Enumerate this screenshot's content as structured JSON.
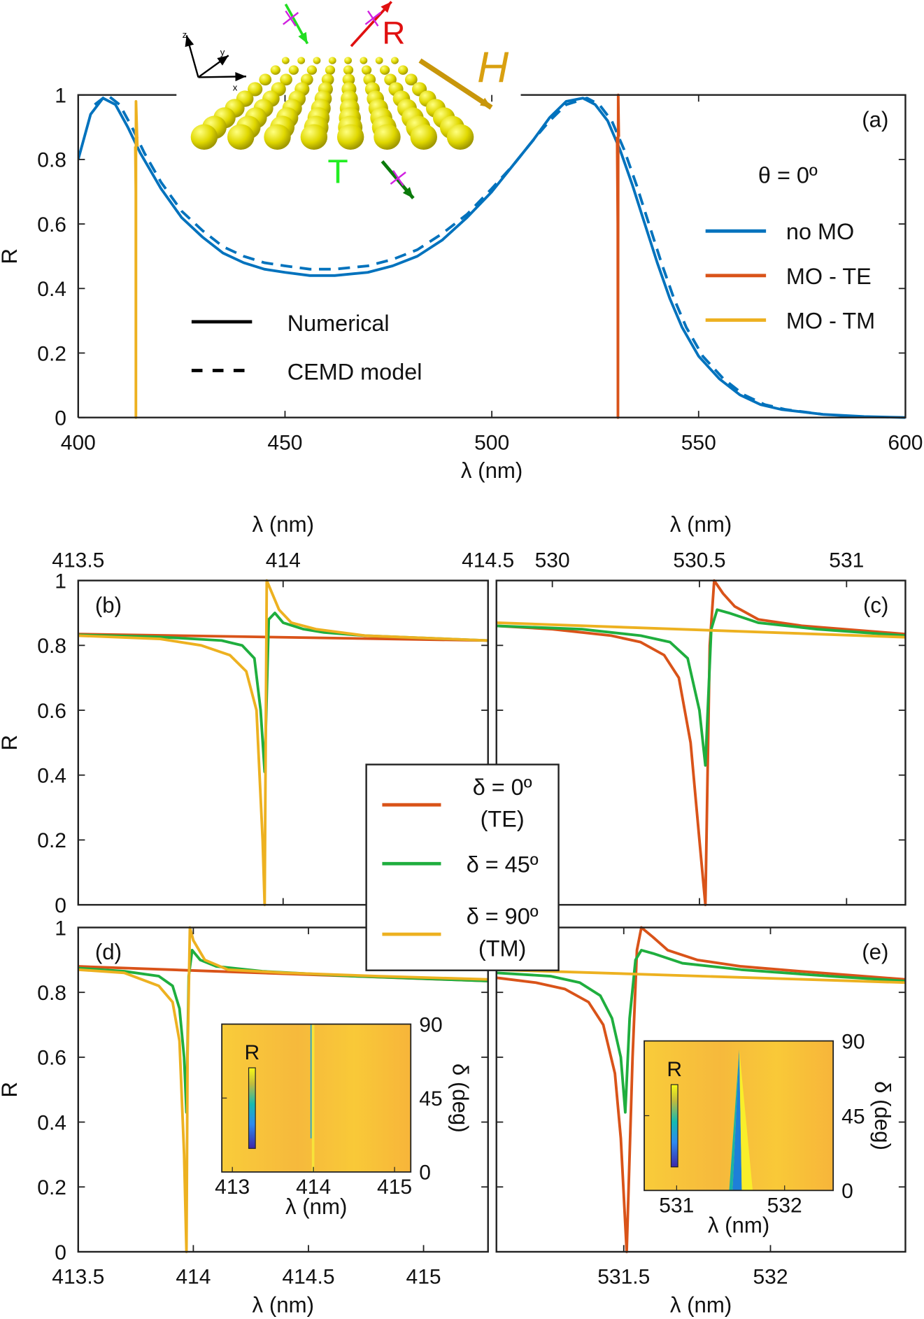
{
  "colors": {
    "no_mo": "#0072BD",
    "te": "#D95319",
    "tm": "#EDB120",
    "d45": "#1FAE3E"
  },
  "schematic": {
    "label_R": "R",
    "label_H": "H",
    "label_T": "T",
    "axis_x": "x",
    "axis_y": "y",
    "axis_z": "z"
  },
  "chart_data": [
    {
      "id": "a",
      "type": "line",
      "panel_label": "(a)",
      "xlabel": "λ (nm)",
      "ylabel": "R",
      "xlim": [
        400,
        600
      ],
      "ylim": [
        0,
        1
      ],
      "xticks": [
        400,
        450,
        500,
        550,
        600
      ],
      "yticks": [
        0,
        0.2,
        0.4,
        0.6,
        0.8,
        1
      ],
      "ytick_labels": [
        "0",
        "0.2",
        "0.4",
        "0.6",
        "0.8",
        "1"
      ],
      "annotation": "θ = 0º",
      "legend": {
        "placement": "right",
        "entries": [
          "no MO",
          "MO - TE",
          "MO - TM"
        ]
      },
      "style_legend": {
        "placement": "bottom-left",
        "entries": [
          "Numerical",
          "CEMD model"
        ]
      },
      "series": [
        {
          "name": "no MO",
          "style": "solid",
          "color": "no_mo",
          "x": [
            400,
            403,
            406,
            409,
            412,
            415,
            420,
            425,
            430,
            435,
            440,
            445,
            450,
            456,
            462,
            470,
            476,
            482,
            488,
            494,
            500,
            505,
            510,
            514,
            518,
            522,
            525,
            528,
            531,
            534,
            537,
            540,
            543,
            546,
            550,
            555,
            560,
            565,
            570,
            580,
            590,
            600
          ],
          "y": [
            0.8,
            0.94,
            0.99,
            0.97,
            0.9,
            0.82,
            0.71,
            0.62,
            0.56,
            0.51,
            0.48,
            0.46,
            0.45,
            0.44,
            0.44,
            0.45,
            0.47,
            0.5,
            0.55,
            0.62,
            0.7,
            0.78,
            0.86,
            0.93,
            0.98,
            0.99,
            0.97,
            0.92,
            0.83,
            0.72,
            0.6,
            0.48,
            0.37,
            0.28,
            0.19,
            0.12,
            0.07,
            0.04,
            0.025,
            0.01,
            0.003,
            0
          ]
        },
        {
          "name": "no MO",
          "style": "dashed",
          "color": "no_mo",
          "x": [
            404,
            407,
            410,
            413,
            416,
            420,
            425,
            430,
            435,
            440,
            445,
            450,
            456,
            462,
            470,
            476,
            482,
            488,
            494,
            500,
            505,
            510,
            514,
            518,
            523,
            526,
            529,
            532,
            535,
            538,
            541,
            544,
            547,
            551,
            556,
            561,
            566,
            571,
            580
          ],
          "y": [
            0.97,
            1.0,
            0.97,
            0.9,
            0.82,
            0.73,
            0.64,
            0.58,
            0.53,
            0.5,
            0.48,
            0.47,
            0.46,
            0.46,
            0.47,
            0.49,
            0.52,
            0.57,
            0.63,
            0.71,
            0.78,
            0.86,
            0.92,
            0.97,
            0.99,
            0.97,
            0.92,
            0.83,
            0.72,
            0.6,
            0.48,
            0.37,
            0.28,
            0.19,
            0.12,
            0.07,
            0.04,
            0.025,
            0.01
          ]
        },
        {
          "name": "MO - TE",
          "style": "solid",
          "color": "te",
          "x": [
            530.3,
            530.45,
            530.5,
            530.55,
            530.7
          ],
          "y": [
            0.87,
            0.6,
            0,
            1,
            0.87
          ]
        },
        {
          "name": "MO - TM",
          "style": "solid",
          "color": "tm",
          "x": [
            413.8,
            413.93,
            413.95,
            413.97,
            414.3
          ],
          "y": [
            0.84,
            0.7,
            0,
            0.98,
            0.84
          ]
        }
      ]
    },
    {
      "id": "b",
      "type": "line",
      "panel_label": "(b)",
      "xlabel": "λ (nm)",
      "ylabel": "R",
      "xlim": [
        413.5,
        414.5
      ],
      "ylim": [
        0,
        1
      ],
      "xaxis": "top",
      "xticks": [
        413.5,
        414,
        414.5
      ],
      "xtick_labels": [
        "413.5",
        "414",
        "414.5"
      ],
      "yticks": [
        0,
        0.2,
        0.4,
        0.6,
        0.8,
        1
      ],
      "ytick_labels": [
        "0",
        "0.2",
        "0.4",
        "0.6",
        "0.8",
        "1"
      ],
      "series": [
        {
          "name": "δ = 0º (TE)",
          "color": "te",
          "x": [
            413.5,
            414.5
          ],
          "y": [
            0.835,
            0.815
          ]
        },
        {
          "name": "δ = 45º",
          "color": "d45",
          "x": [
            413.5,
            413.7,
            413.85,
            413.9,
            413.93,
            413.945,
            413.955,
            413.965,
            413.98,
            414,
            414.05,
            414.1,
            414.2,
            414.5
          ],
          "y": [
            0.832,
            0.826,
            0.815,
            0.8,
            0.76,
            0.6,
            0.41,
            0.88,
            0.9,
            0.87,
            0.85,
            0.84,
            0.83,
            0.815
          ]
        },
        {
          "name": "δ = 90º (TM)",
          "color": "tm",
          "x": [
            413.5,
            413.7,
            413.8,
            413.87,
            413.91,
            413.935,
            413.95,
            413.955,
            413.96,
            413.97,
            413.99,
            414.02,
            414.08,
            414.2,
            414.5
          ],
          "y": [
            0.83,
            0.82,
            0.8,
            0.77,
            0.72,
            0.6,
            0.2,
            0,
            1,
            0.97,
            0.91,
            0.87,
            0.85,
            0.83,
            0.815
          ]
        }
      ]
    },
    {
      "id": "c",
      "type": "line",
      "panel_label": "(c)",
      "xlabel": "λ (nm)",
      "xlim": [
        529.81,
        531.2
      ],
      "ylim": [
        0,
        1
      ],
      "xaxis": "top",
      "xticks": [
        530,
        530.5,
        531
      ],
      "xtick_labels": [
        "530",
        "530.5",
        "531"
      ],
      "series": [
        {
          "name": "δ = 0º (TE)",
          "color": "te",
          "x": [
            529.81,
            530.0,
            530.2,
            530.3,
            530.38,
            530.43,
            530.47,
            530.5,
            530.52,
            530.535,
            530.55,
            530.58,
            530.62,
            530.7,
            530.85,
            531.2
          ],
          "y": [
            0.86,
            0.85,
            0.83,
            0.81,
            0.77,
            0.7,
            0.5,
            0.2,
            0,
            0.8,
            1,
            0.96,
            0.92,
            0.88,
            0.86,
            0.835
          ]
        },
        {
          "name": "δ = 45º",
          "color": "d45",
          "x": [
            529.81,
            530.1,
            530.3,
            530.4,
            530.46,
            530.5,
            530.52,
            530.54,
            530.56,
            530.6,
            530.7,
            530.9,
            531.2
          ],
          "y": [
            0.86,
            0.85,
            0.83,
            0.81,
            0.76,
            0.6,
            0.43,
            0.85,
            0.91,
            0.9,
            0.87,
            0.85,
            0.83
          ]
        },
        {
          "name": "δ = 90º (TM)",
          "color": "tm",
          "x": [
            529.81,
            531.2
          ],
          "y": [
            0.87,
            0.825
          ]
        }
      ]
    },
    {
      "id": "d",
      "type": "line",
      "panel_label": "(d)",
      "xlabel": "λ (nm)",
      "ylabel": "R",
      "xlim": [
        413.5,
        415.28
      ],
      "ylim": [
        0,
        1
      ],
      "xticks": [
        413.5,
        414,
        414.5,
        415
      ],
      "xtick_labels": [
        "413.5",
        "414",
        "414.5",
        "415"
      ],
      "yticks": [
        0,
        0.2,
        0.4,
        0.6,
        0.8,
        1
      ],
      "ytick_labels": [
        "0",
        "0.2",
        "0.4",
        "0.6",
        "0.8",
        "1"
      ],
      "series": [
        {
          "name": "δ = 0º (TE)",
          "color": "te",
          "x": [
            413.5,
            415.28
          ],
          "y": [
            0.88,
            0.835
          ]
        },
        {
          "name": "δ = 45º",
          "color": "d45",
          "x": [
            413.5,
            413.7,
            413.85,
            413.91,
            413.94,
            413.96,
            413.97,
            413.98,
            413.995,
            414.03,
            414.1,
            414.3,
            414.7,
            415.28
          ],
          "y": [
            0.875,
            0.865,
            0.85,
            0.82,
            0.75,
            0.6,
            0.43,
            0.85,
            0.93,
            0.9,
            0.88,
            0.865,
            0.85,
            0.835
          ]
        },
        {
          "name": "δ = 90º (TM)",
          "color": "tm",
          "x": [
            413.5,
            413.7,
            413.85,
            413.91,
            413.94,
            413.96,
            413.97,
            413.975,
            413.985,
            414.0,
            414.05,
            414.15,
            414.4,
            414.8,
            415.28
          ],
          "y": [
            0.87,
            0.86,
            0.82,
            0.77,
            0.65,
            0.3,
            0,
            0.6,
            1,
            0.96,
            0.9,
            0.87,
            0.86,
            0.85,
            0.84
          ]
        }
      ],
      "inset": {
        "type": "heatmap",
        "label": "R",
        "xlabel": "λ (nm)",
        "ylabel": "δ (deg)",
        "xlim": [
          412.87,
          415.2
        ],
        "ylim": [
          0,
          90
        ],
        "xticks": [
          413,
          414,
          415
        ],
        "yticks": [
          0,
          45,
          90
        ],
        "resonance": 413.97
      }
    },
    {
      "id": "e",
      "type": "line",
      "panel_label": "(e)",
      "xlabel": "λ (nm)",
      "xlim": [
        531.066,
        532.46
      ],
      "ylim": [
        0,
        1
      ],
      "xticks": [
        531.5,
        532
      ],
      "xtick_labels": [
        "531.5",
        "532"
      ],
      "series": [
        {
          "name": "δ = 0º (TE)",
          "color": "te",
          "x": [
            531.066,
            531.2,
            531.3,
            531.38,
            531.43,
            531.47,
            531.49,
            531.51,
            531.53,
            531.545,
            531.56,
            531.6,
            531.65,
            531.75,
            531.9,
            532.1,
            532.46
          ],
          "y": [
            0.845,
            0.83,
            0.81,
            0.77,
            0.7,
            0.55,
            0.35,
            0,
            0.6,
            0.93,
            1,
            0.97,
            0.93,
            0.9,
            0.88,
            0.865,
            0.84
          ]
        },
        {
          "name": "δ = 45º",
          "color": "d45",
          "x": [
            531.066,
            531.25,
            531.35,
            531.42,
            531.46,
            531.49,
            531.505,
            531.52,
            531.54,
            531.56,
            531.6,
            531.7,
            531.9,
            532.2,
            532.46
          ],
          "y": [
            0.86,
            0.85,
            0.83,
            0.79,
            0.72,
            0.6,
            0.43,
            0.72,
            0.9,
            0.93,
            0.92,
            0.89,
            0.87,
            0.85,
            0.835
          ]
        },
        {
          "name": "δ = 90º (TM)",
          "color": "tm",
          "x": [
            531.066,
            532.46
          ],
          "y": [
            0.87,
            0.83
          ]
        }
      ],
      "inset": {
        "type": "heatmap",
        "label": "R",
        "xlabel": "λ (nm)",
        "ylabel": "δ (deg)",
        "xlim": [
          530.7,
          532.45
        ],
        "ylim": [
          0,
          90
        ],
        "xticks": [
          531,
          532
        ],
        "yticks": [
          0,
          45,
          90
        ],
        "resonance": 531.58
      }
    }
  ],
  "shared_legend": {
    "entries": [
      {
        "color": "te",
        "line1": "δ = 0º",
        "line2": "(TE)"
      },
      {
        "color": "d45",
        "line1": "δ = 45º",
        "line2": ""
      },
      {
        "color": "tm",
        "line1": "δ = 90º",
        "line2": "(TM)"
      }
    ]
  }
}
